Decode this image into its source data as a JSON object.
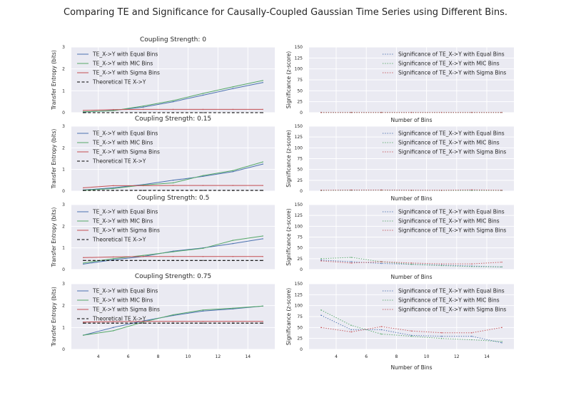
{
  "figure": {
    "suptitle": "Comparing TE and Significance for Causally-Coupled Gaussian Time Series using Different Bins.",
    "x_label_bottom": "Number of Bins"
  },
  "colors": {
    "background_axes": "#EAEAF2",
    "grid": "#ffffff",
    "equal": "#4C72B0",
    "mic": "#55A868",
    "sigma": "#C44E52",
    "theory": "#000000"
  },
  "chart_data": [
    {
      "type": "line",
      "title": "Coupling Strength: 0",
      "ylabel": "Transfer Entropy (bits)",
      "xlabel": "",
      "xlim": [
        2.2,
        15.8
      ],
      "ylim": [
        0,
        3
      ],
      "xticks": [],
      "yticks": [
        0,
        1,
        2,
        3
      ],
      "grid": true,
      "legend": "top-left",
      "x": [
        3,
        5,
        7,
        9,
        11,
        13,
        15
      ],
      "series": [
        {
          "name": "TE_X->Y with Equal Bins",
          "style": "solid",
          "color": "#4C72B0",
          "values": [
            0.03,
            0.1,
            0.25,
            0.5,
            0.8,
            1.1,
            1.38
          ]
        },
        {
          "name": "TE_X->Y with MIC Bins",
          "style": "solid",
          "color": "#55A868",
          "values": [
            0.04,
            0.09,
            0.3,
            0.55,
            0.88,
            1.18,
            1.47
          ]
        },
        {
          "name": "TE_X->Y with Sigma Bins",
          "style": "solid",
          "color": "#C44E52",
          "values": [
            0.1,
            0.14,
            0.15,
            0.15,
            0.15,
            0.15,
            0.15
          ]
        },
        {
          "name": "Theoretical TE X->Y",
          "style": "dashed",
          "color": "#000000",
          "values": [
            0,
            0,
            0,
            0,
            0,
            0,
            0
          ]
        }
      ]
    },
    {
      "type": "line",
      "title": "",
      "ylabel": "Significance (z-score)",
      "xlabel": "Number of Bins",
      "xlim": [
        2.2,
        15.8
      ],
      "ylim": [
        0,
        150
      ],
      "xticks": [],
      "yticks": [
        0,
        25,
        50,
        75,
        100,
        125,
        150
      ],
      "grid": true,
      "legend": "top-right",
      "x": [
        3,
        5,
        7,
        9,
        11,
        13,
        15
      ],
      "series": [
        {
          "name": "Significance of TE_X->Y with Equal Bins",
          "style": "dotted",
          "color": "#4C72B0",
          "values": [
            0.5,
            0.5,
            0.5,
            0.5,
            0.5,
            0.5,
            0.5
          ]
        },
        {
          "name": "Significance of TE_X->Y with MIC Bins",
          "style": "dotted",
          "color": "#55A868",
          "values": [
            0.5,
            0.5,
            0.5,
            0.5,
            0.5,
            0.5,
            0.5
          ]
        },
        {
          "name": "Significance of TE_X->Y with Sigma Bins",
          "style": "dotted",
          "color": "#C44E52",
          "values": [
            0.5,
            0.5,
            0.5,
            0.5,
            0.5,
            0.5,
            0.5
          ]
        }
      ]
    },
    {
      "type": "line",
      "title": "Coupling Strength: 0.15",
      "ylabel": "Transfer Entropy (bits)",
      "xlabel": "",
      "xlim": [
        2.2,
        15.8
      ],
      "ylim": [
        0,
        3
      ],
      "xticks": [],
      "yticks": [
        0,
        1,
        2,
        3
      ],
      "grid": true,
      "legend": "top-left",
      "x": [
        3,
        5,
        7,
        9,
        11,
        13,
        15
      ],
      "series": [
        {
          "name": "TE_X->Y with Equal Bins",
          "style": "solid",
          "color": "#4C72B0",
          "values": [
            0.05,
            0.15,
            0.3,
            0.5,
            0.68,
            0.9,
            1.25
          ]
        },
        {
          "name": "TE_X->Y with MIC Bins",
          "style": "solid",
          "color": "#55A868",
          "values": [
            0.04,
            0.12,
            0.28,
            0.38,
            0.72,
            0.95,
            1.35
          ]
        },
        {
          "name": "TE_X->Y with Sigma Bins",
          "style": "solid",
          "color": "#C44E52",
          "values": [
            0.15,
            0.25,
            0.25,
            0.26,
            0.26,
            0.26,
            0.26
          ]
        },
        {
          "name": "Theoretical TE X->Y",
          "style": "dashed",
          "color": "#000000",
          "values": [
            0.03,
            0.03,
            0.03,
            0.03,
            0.03,
            0.03,
            0.03
          ]
        }
      ]
    },
    {
      "type": "line",
      "title": "",
      "ylabel": "Significance (z-score)",
      "xlabel": "Number of Bins",
      "xlim": [
        2.2,
        15.8
      ],
      "ylim": [
        0,
        150
      ],
      "xticks": [],
      "yticks": [
        0,
        25,
        50,
        75,
        100,
        125,
        150
      ],
      "grid": true,
      "legend": "top-right",
      "x": [
        3,
        5,
        7,
        9,
        11,
        13,
        15
      ],
      "series": [
        {
          "name": "Significance of TE_X->Y with Equal Bins",
          "style": "dotted",
          "color": "#4C72B0",
          "values": [
            1.5,
            2,
            2.5,
            2,
            1.5,
            2,
            1.5
          ]
        },
        {
          "name": "Significance of TE_X->Y with MIC Bins",
          "style": "dotted",
          "color": "#55A868",
          "values": [
            1.5,
            2,
            2,
            1.5,
            1.5,
            1.5,
            1.5
          ]
        },
        {
          "name": "Significance of TE_X->Y with Sigma Bins",
          "style": "dotted",
          "color": "#C44E52",
          "values": [
            2,
            2.5,
            2.5,
            2,
            2,
            3,
            2
          ]
        }
      ]
    },
    {
      "type": "line",
      "title": "Coupling Strength: 0.5",
      "ylabel": "Transfer Entropy (bits)",
      "xlabel": "",
      "xlim": [
        2.2,
        15.8
      ],
      "ylim": [
        0,
        3
      ],
      "xticks": [],
      "yticks": [
        0,
        1,
        2,
        3
      ],
      "grid": true,
      "legend": "top-left",
      "x": [
        3,
        5,
        7,
        9,
        11,
        13,
        15
      ],
      "series": [
        {
          "name": "TE_X->Y with Equal Bins",
          "style": "solid",
          "color": "#4C72B0",
          "values": [
            0.25,
            0.45,
            0.6,
            0.85,
            1.0,
            1.2,
            1.42
          ]
        },
        {
          "name": "TE_X->Y with MIC Bins",
          "style": "solid",
          "color": "#55A868",
          "values": [
            0.3,
            0.5,
            0.65,
            0.82,
            0.98,
            1.35,
            1.55
          ]
        },
        {
          "name": "TE_X->Y with Sigma Bins",
          "style": "solid",
          "color": "#C44E52",
          "values": [
            0.55,
            0.58,
            0.6,
            0.6,
            0.6,
            0.6,
            0.6
          ]
        },
        {
          "name": "Theoretical TE X->Y",
          "style": "dashed",
          "color": "#000000",
          "values": [
            0.42,
            0.42,
            0.42,
            0.42,
            0.42,
            0.42,
            0.42
          ]
        }
      ]
    },
    {
      "type": "line",
      "title": "",
      "ylabel": "Significance (z-score)",
      "xlabel": "Number of Bins",
      "xlim": [
        2.2,
        15.8
      ],
      "ylim": [
        0,
        150
      ],
      "xticks": [],
      "yticks": [
        0,
        25,
        50,
        75,
        100,
        125,
        150
      ],
      "grid": true,
      "legend": "top-right",
      "x": [
        3,
        5,
        7,
        9,
        11,
        13,
        15
      ],
      "series": [
        {
          "name": "Significance of TE_X->Y with Equal Bins",
          "style": "dotted",
          "color": "#4C72B0",
          "values": [
            22,
            18,
            14,
            12,
            10,
            8,
            6
          ]
        },
        {
          "name": "Significance of TE_X->Y with MIC Bins",
          "style": "dotted",
          "color": "#55A868",
          "values": [
            25,
            28,
            18,
            12,
            9,
            7,
            6
          ]
        },
        {
          "name": "Significance of TE_X->Y with Sigma Bins",
          "style": "dotted",
          "color": "#C44E52",
          "values": [
            20,
            15,
            18,
            15,
            13,
            13,
            17
          ]
        }
      ]
    },
    {
      "type": "line",
      "title": "Coupling Strength: 0.75",
      "ylabel": "Transfer Entropy (bits)",
      "xlabel": "",
      "xlim": [
        2.2,
        15.8
      ],
      "ylim": [
        0,
        3
      ],
      "xticks": [
        4,
        6,
        8,
        10,
        12,
        14
      ],
      "yticks": [
        0,
        1,
        2,
        3
      ],
      "grid": true,
      "legend": "top-left",
      "x": [
        3,
        5,
        7,
        9,
        11,
        13,
        15
      ],
      "series": [
        {
          "name": "TE_X->Y with Equal Bins",
          "style": "solid",
          "color": "#4C72B0",
          "values": [
            0.65,
            1.0,
            1.3,
            1.55,
            1.75,
            1.85,
            1.98
          ]
        },
        {
          "name": "TE_X->Y with MIC Bins",
          "style": "solid",
          "color": "#55A868",
          "values": [
            0.65,
            0.85,
            1.25,
            1.58,
            1.8,
            1.88,
            1.98
          ]
        },
        {
          "name": "TE_X->Y with Sigma Bins",
          "style": "solid",
          "color": "#C44E52",
          "values": [
            1.25,
            1.27,
            1.28,
            1.28,
            1.28,
            1.28,
            1.28
          ]
        },
        {
          "name": "Theoretical TE X->Y",
          "style": "dashed",
          "color": "#000000",
          "values": [
            1.2,
            1.2,
            1.2,
            1.2,
            1.2,
            1.2,
            1.2
          ]
        }
      ]
    },
    {
      "type": "line",
      "title": "",
      "ylabel": "Significance (z-score)",
      "xlabel": "Number of Bins",
      "xlim": [
        2.2,
        15.8
      ],
      "ylim": [
        0,
        150
      ],
      "xticks": [
        4,
        6,
        8,
        10,
        12,
        14
      ],
      "yticks": [
        0,
        25,
        50,
        75,
        100,
        125,
        150
      ],
      "grid": true,
      "legend": "top-right",
      "x": [
        3,
        5,
        7,
        9,
        11,
        13,
        15
      ],
      "series": [
        {
          "name": "Significance of TE_X->Y with Equal Bins",
          "style": "dotted",
          "color": "#4C72B0",
          "values": [
            78,
            45,
            45,
            32,
            30,
            30,
            15
          ]
        },
        {
          "name": "Significance of TE_X->Y with MIC Bins",
          "style": "dotted",
          "color": "#55A868",
          "values": [
            90,
            55,
            35,
            30,
            25,
            22,
            18
          ]
        },
        {
          "name": "Significance of TE_X->Y with Sigma Bins",
          "style": "dotted",
          "color": "#C44E52",
          "values": [
            50,
            40,
            52,
            42,
            38,
            38,
            50
          ]
        }
      ]
    }
  ]
}
